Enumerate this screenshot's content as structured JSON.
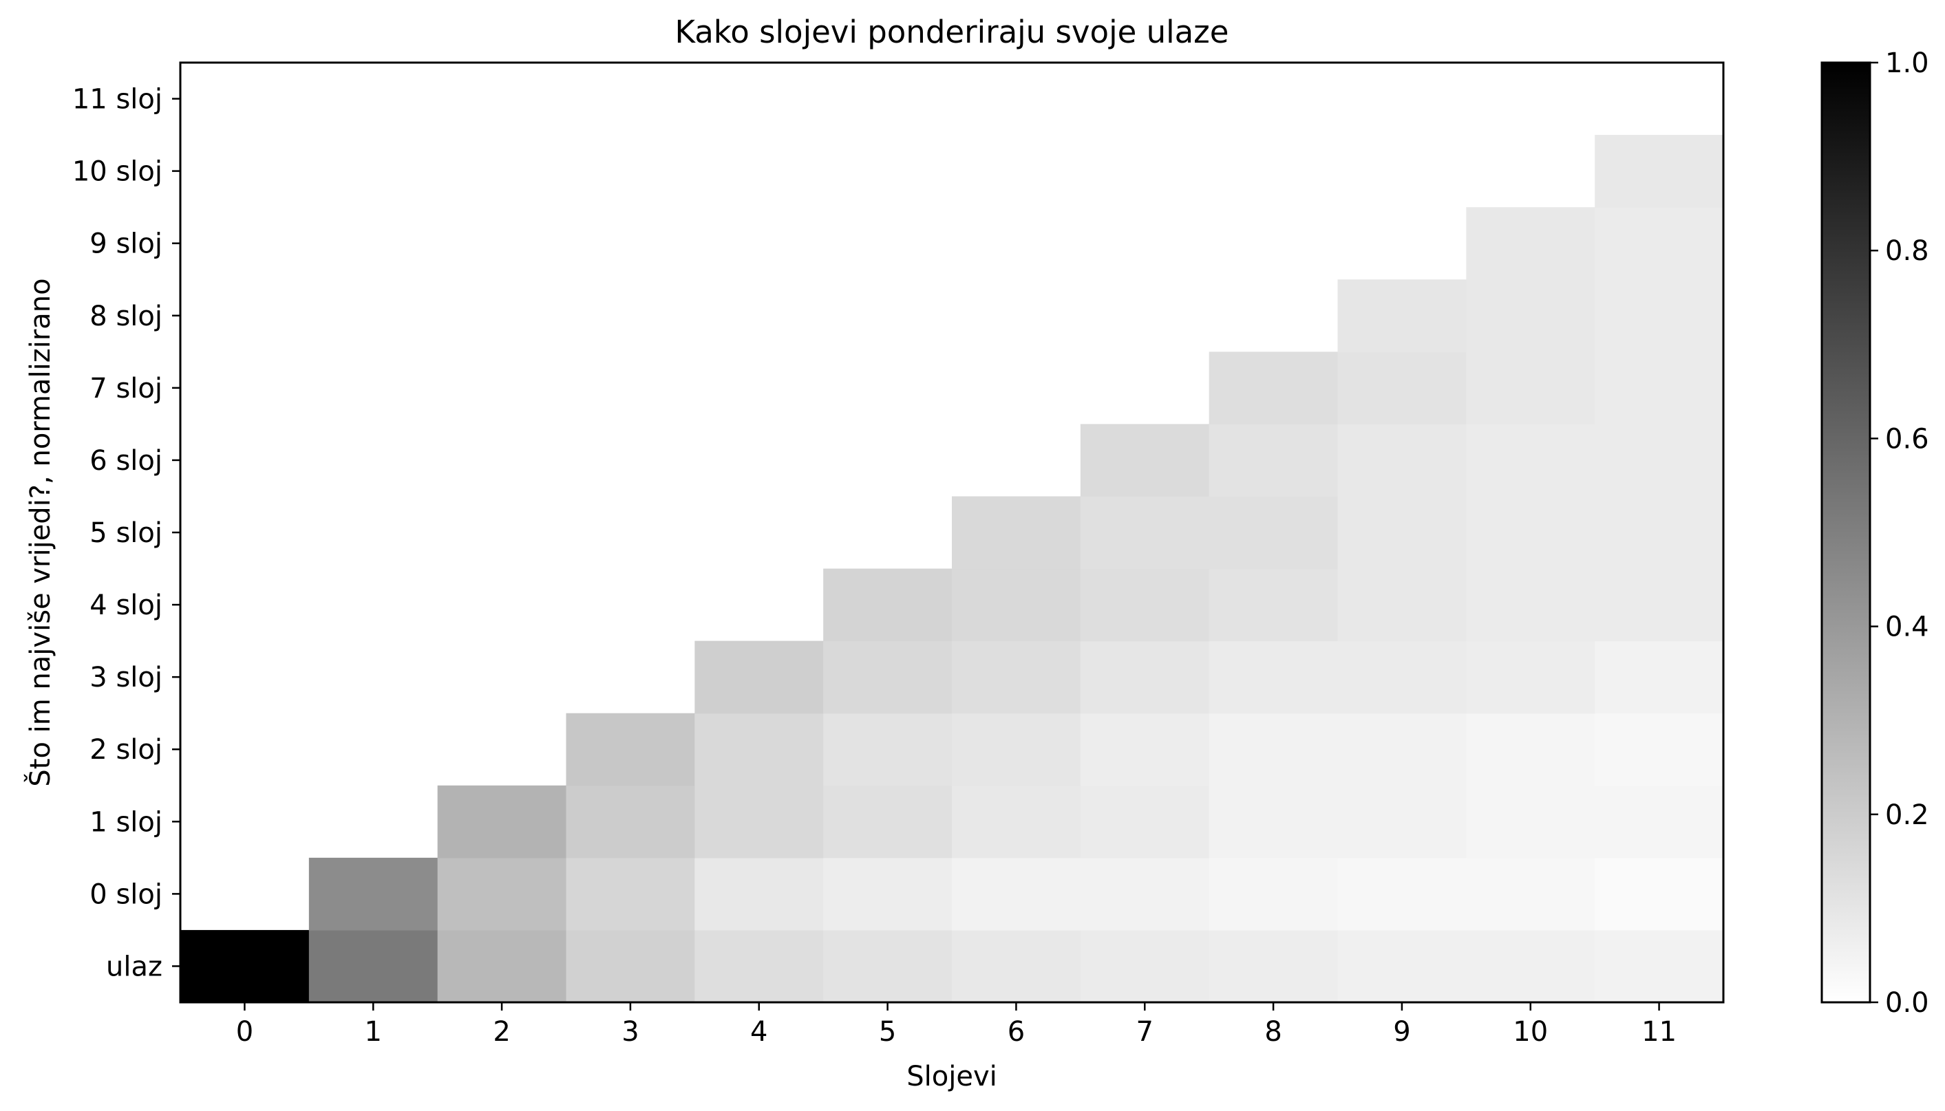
{
  "chart_data": {
    "type": "heatmap",
    "title": "Kako slojevi ponderiraju svoje ulaze",
    "xlabel": "Slojevi",
    "ylabel": "Što im najviše vrijedi?, normalizirano",
    "x_categories": [
      "0",
      "1",
      "2",
      "3",
      "4",
      "5",
      "6",
      "7",
      "8",
      "9",
      "10",
      "11"
    ],
    "y_categories": [
      "ulaz",
      "0 sloj",
      "1 sloj",
      "2 sloj",
      "3 sloj",
      "4 sloj",
      "5 sloj",
      "6 sloj",
      "7 sloj",
      "8 sloj",
      "9 sloj",
      "10 sloj",
      "11 sloj"
    ],
    "matrix_layout": "values[row][col], row index matches y_categories, col index matches x_categories, null means empty cell",
    "values": [
      [
        1.0,
        0.52,
        0.28,
        0.18,
        0.13,
        0.11,
        0.09,
        0.08,
        0.07,
        0.06,
        0.06,
        0.05
      ],
      [
        null,
        0.45,
        0.25,
        0.16,
        0.09,
        0.07,
        0.05,
        0.05,
        0.04,
        0.03,
        0.03,
        0.02
      ],
      [
        null,
        null,
        0.3,
        0.2,
        0.15,
        0.12,
        0.09,
        0.08,
        0.05,
        0.05,
        0.04,
        0.04
      ],
      [
        null,
        null,
        null,
        0.22,
        0.15,
        0.11,
        0.1,
        0.07,
        0.05,
        0.05,
        0.04,
        0.03
      ],
      [
        null,
        null,
        null,
        null,
        0.19,
        0.15,
        0.13,
        0.1,
        0.08,
        0.08,
        0.07,
        0.05
      ],
      [
        null,
        null,
        null,
        null,
        null,
        0.17,
        0.15,
        0.13,
        0.11,
        0.09,
        0.08,
        0.08
      ],
      [
        null,
        null,
        null,
        null,
        null,
        null,
        0.15,
        0.12,
        0.12,
        0.09,
        0.08,
        0.08
      ],
      [
        null,
        null,
        null,
        null,
        null,
        null,
        null,
        0.14,
        0.11,
        0.09,
        0.08,
        0.08
      ],
      [
        null,
        null,
        null,
        null,
        null,
        null,
        null,
        null,
        0.13,
        0.11,
        0.09,
        0.08
      ],
      [
        null,
        null,
        null,
        null,
        null,
        null,
        null,
        null,
        null,
        0.1,
        0.09,
        0.08
      ],
      [
        null,
        null,
        null,
        null,
        null,
        null,
        null,
        null,
        null,
        null,
        0.09,
        0.08
      ],
      [
        null,
        null,
        null,
        null,
        null,
        null,
        null,
        null,
        null,
        null,
        null,
        0.09
      ],
      [
        null,
        null,
        null,
        null,
        null,
        null,
        null,
        null,
        null,
        null,
        null,
        null
      ]
    ],
    "colormap": "gray_r",
    "color_low": "#ffffff",
    "color_high": "#000000",
    "vmin": 0.0,
    "vmax": 1.0,
    "colorbar_ticks": [
      "0.0",
      "0.2",
      "0.4",
      "0.6",
      "0.8",
      "1.0"
    ],
    "colorbar_tick_values": [
      0.0,
      0.2,
      0.4,
      0.6,
      0.8,
      1.0
    ],
    "grid": false,
    "colorbar_position": "right"
  }
}
